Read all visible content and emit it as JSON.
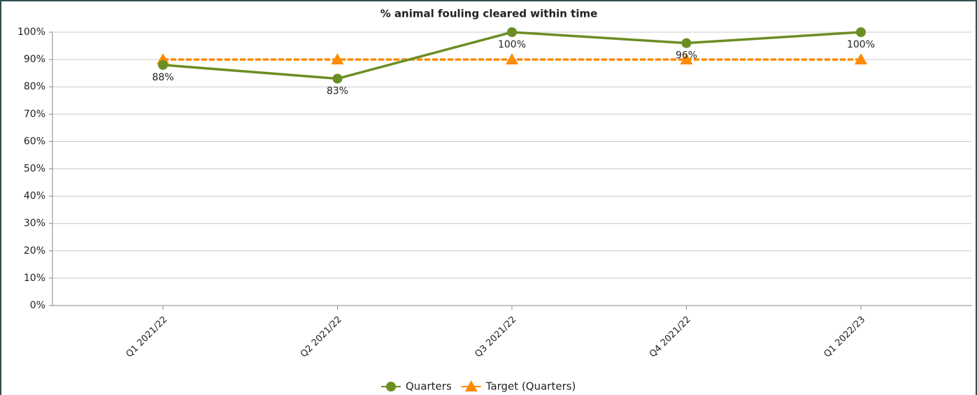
{
  "chart_data": {
    "type": "line",
    "title": "% animal fouling cleared within time",
    "categories": [
      "Q1 2021/22",
      "Q2 2021/22",
      "Q3 2021/22",
      "Q4 2021/22",
      "Q1 2022/23"
    ],
    "series": [
      {
        "name": "Quarters",
        "color": "#6b8e23",
        "marker": "circle",
        "values": [
          88,
          83,
          100,
          96,
          100
        ],
        "value_labels": [
          "88%",
          "83%",
          "100%",
          "96%",
          "100%"
        ]
      },
      {
        "name": "Target (Quarters)",
        "color": "#ff8c00",
        "marker": "triangle",
        "dashed": true,
        "values": [
          90,
          90,
          90,
          90,
          90
        ]
      }
    ],
    "ylim": [
      0,
      100
    ],
    "yticks": [
      {
        "value": 0,
        "label": "0%"
      },
      {
        "value": 10,
        "label": "10%"
      },
      {
        "value": 20,
        "label": "20%"
      },
      {
        "value": 30,
        "label": "30%"
      },
      {
        "value": 40,
        "label": "40%"
      },
      {
        "value": 50,
        "label": "50%"
      },
      {
        "value": 60,
        "label": "60%"
      },
      {
        "value": 70,
        "label": "70%"
      },
      {
        "value": 80,
        "label": "80%"
      },
      {
        "value": 90,
        "label": "90%"
      },
      {
        "value": 100,
        "label": "100%"
      }
    ],
    "grid": true,
    "legend": "bottom"
  }
}
